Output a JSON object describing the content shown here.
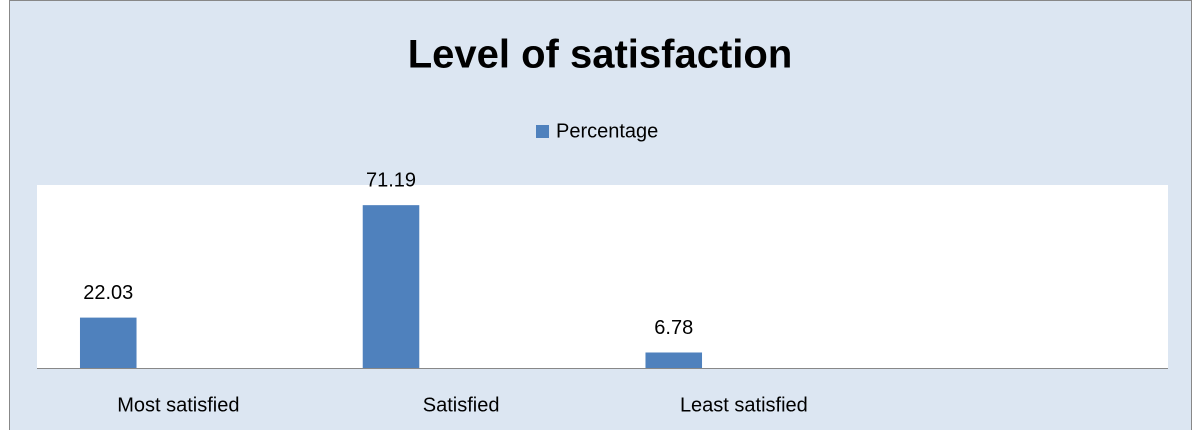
{
  "chart_data": {
    "type": "bar",
    "title": "Level of satisfaction",
    "categories": [
      "Most satisfied",
      "Satisfied",
      "Least satisfied",
      null
    ],
    "series": [
      {
        "name": "Percentage",
        "color": "#4f81bd",
        "values": [
          22.03,
          71.19,
          6.78,
          null
        ]
      }
    ],
    "ylim": [
      0,
      80
    ],
    "legend": "top"
  }
}
